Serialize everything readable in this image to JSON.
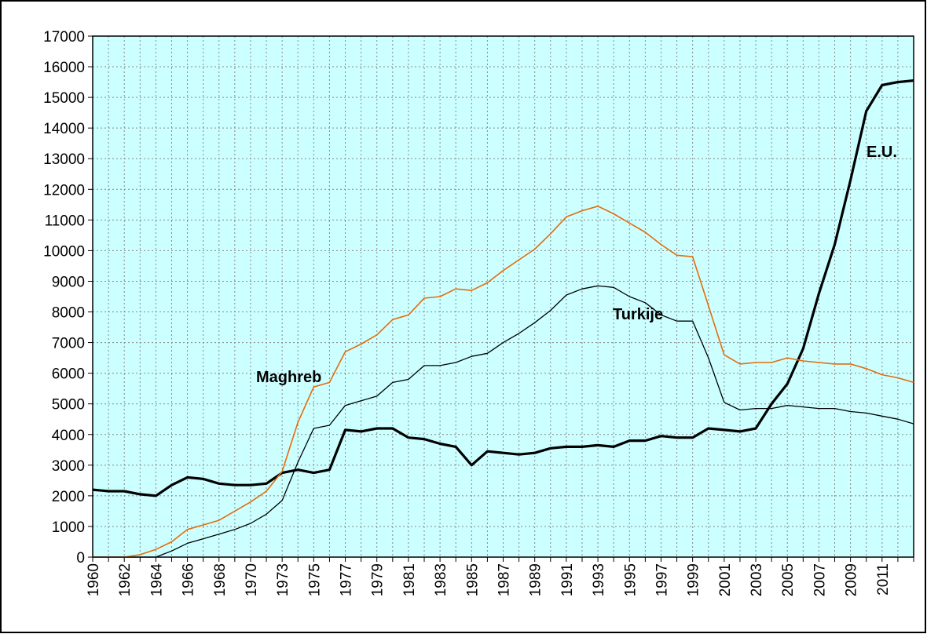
{
  "chart_data": {
    "type": "line",
    "categories": [
      "1960",
      null,
      "1962",
      null,
      "1964",
      null,
      "1966",
      null,
      "1968",
      null,
      "1970",
      null,
      "1973",
      null,
      "1975",
      null,
      "1977",
      null,
      "1979",
      null,
      "1981",
      null,
      "1983",
      null,
      "1985",
      null,
      "1987",
      null,
      "1989",
      null,
      "1991",
      null,
      "1993",
      null,
      "1995",
      null,
      "1997",
      null,
      "1999",
      null,
      "2001",
      null,
      "2003",
      null,
      "2005",
      null,
      "2007",
      null,
      "2009",
      null,
      "2011",
      null,
      null
    ],
    "series": [
      {
        "name": "E.U.",
        "color": "#000000",
        "line_width": 3.2,
        "values": [
          2200,
          2150,
          2150,
          2050,
          2000,
          2350,
          2600,
          2550,
          2400,
          2350,
          2350,
          2400,
          2750,
          2850,
          2750,
          2850,
          4150,
          4100,
          4200,
          4200,
          3900,
          3850,
          3700,
          3600,
          3000,
          3450,
          3400,
          3350,
          3400,
          3550,
          3600,
          3600,
          3650,
          3600,
          3800,
          3800,
          3950,
          3900,
          3900,
          4200,
          4150,
          4100,
          4200,
          5000,
          5650,
          6800,
          8600,
          10200,
          12300,
          14550,
          15400,
          15500,
          15550
        ]
      },
      {
        "name": "Maghreb",
        "color": "#e46c0a",
        "line_width": 1.6,
        "values": [
          0,
          0,
          0,
          80,
          250,
          500,
          900,
          1050,
          1200,
          1500,
          1800,
          2150,
          2800,
          4400,
          5550,
          5700,
          6700,
          6950,
          7250,
          7750,
          7900,
          8450,
          8500,
          8750,
          8700,
          8950,
          9350,
          9700,
          10050,
          10550,
          11100,
          11300,
          11450,
          11200,
          10900,
          10600,
          10200,
          9850,
          9800,
          8200,
          6600,
          6300,
          6350,
          6350,
          6500,
          6400,
          6350,
          6300,
          6300,
          6150,
          5950,
          5850,
          5700
        ]
      },
      {
        "name": "Turkije",
        "color": "#000000",
        "line_width": 1.3,
        "values": [
          0,
          0,
          0,
          0,
          0,
          200,
          450,
          600,
          750,
          900,
          1100,
          1400,
          1850,
          3100,
          4200,
          4300,
          4950,
          5100,
          5250,
          5700,
          5800,
          6250,
          6250,
          6350,
          6550,
          6650,
          7000,
          7300,
          7650,
          8050,
          8550,
          8750,
          8850,
          8800,
          8500,
          8300,
          7900,
          7700,
          7700,
          6500,
          5050,
          4800,
          4850,
          4850,
          4950,
          4900,
          4850,
          4850,
          4750,
          4700,
          4600,
          4500,
          4350
        ]
      }
    ],
    "annotations": [
      "Maghreb",
      "Turkije",
      "E.U."
    ],
    "ylim": [
      0,
      17000
    ],
    "yticks": [
      0,
      1000,
      2000,
      3000,
      4000,
      5000,
      6000,
      7000,
      8000,
      9000,
      10000,
      11000,
      12000,
      13000,
      14000,
      15000,
      16000,
      17000
    ],
    "grid": true,
    "background": "#ccffff"
  }
}
